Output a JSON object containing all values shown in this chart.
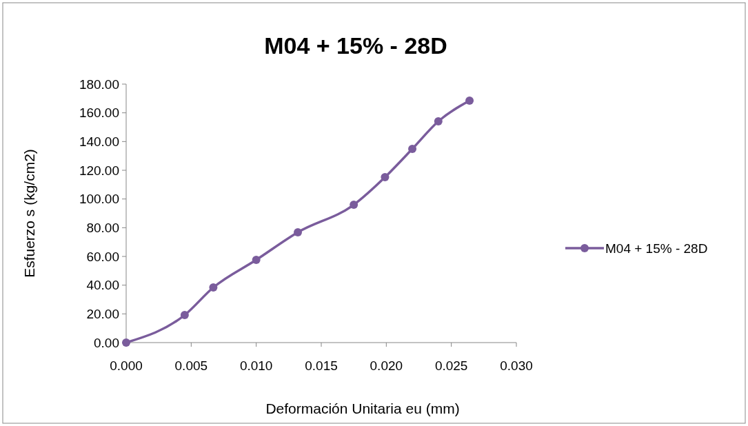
{
  "chart_data": {
    "type": "line",
    "title": "M04 + 15% - 28D",
    "xlabel": "Deformación Unitaria eu (mm)",
    "ylabel": "Esfuerzo s (kg/cm2)",
    "x": [
      0,
      0.0045,
      0.0067,
      0.01,
      0.0132,
      0.0175,
      0.0199,
      0.022,
      0.024,
      0.0264
    ],
    "series": [
      {
        "name": "M04 + 15% - 28D",
        "color": "#7a5c9c",
        "values": [
          0,
          19.2,
          38.4,
          57.6,
          76.8,
          96,
          115.2,
          134.9,
          154.1,
          168.5
        ]
      }
    ],
    "xlim": [
      0,
      0.03
    ],
    "xticks": [
      {
        "value": 0,
        "label": "0.000"
      },
      {
        "value": 0.005,
        "label": "0.005"
      },
      {
        "value": 0.01,
        "label": "0.010"
      },
      {
        "value": 0.015,
        "label": "0.015"
      },
      {
        "value": 0.02,
        "label": "0.020"
      },
      {
        "value": 0.025,
        "label": "0.025"
      },
      {
        "value": 0.03,
        "label": "0.030"
      }
    ],
    "ylim": [
      0,
      180
    ],
    "yticks": [
      {
        "value": 0,
        "label": "0.00"
      },
      {
        "value": 20,
        "label": "20.00"
      },
      {
        "value": 40,
        "label": "40.00"
      },
      {
        "value": 60,
        "label": "60.00"
      },
      {
        "value": 80,
        "label": "80.00"
      },
      {
        "value": 100,
        "label": "100.00"
      },
      {
        "value": 120,
        "label": "120.00"
      },
      {
        "value": 140,
        "label": "140.00"
      },
      {
        "value": 160,
        "label": "160.00"
      },
      {
        "value": 180,
        "label": "180.00"
      }
    ],
    "grid": false,
    "legend": "right",
    "marker": "circle",
    "line_style": "solid"
  }
}
